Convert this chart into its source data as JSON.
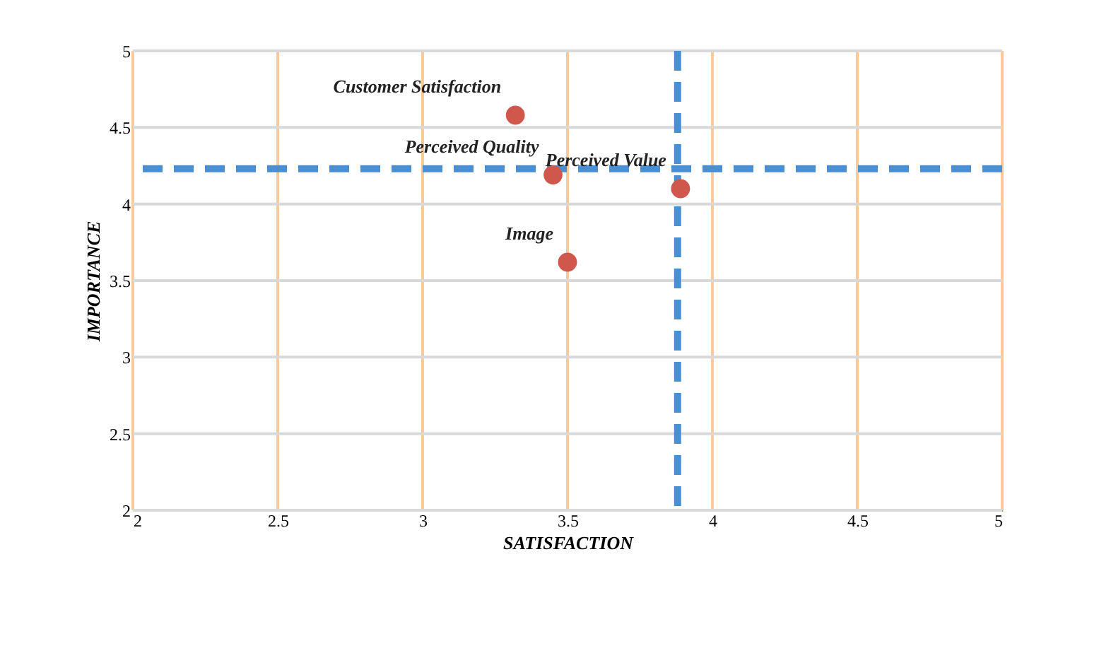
{
  "chart_data": {
    "type": "scatter",
    "xlabel": "SATISFACTION",
    "ylabel": "IMPORTANCE",
    "x": [
      3.32,
      3.45,
      3.89,
      3.5
    ],
    "series": [
      {
        "color": "#d0574b",
        "values": [
          4.58,
          4.19,
          4.1,
          3.62
        ]
      }
    ],
    "annotations": [
      {
        "text": "Customer Satisfaction",
        "x": 3.32,
        "y": 4.58
      },
      {
        "text": "Perceived Quality",
        "x": 3.45,
        "y": 4.19
      },
      {
        "text": "Perceived Value",
        "x": 3.89,
        "y": 4.1
      },
      {
        "text": "Image",
        "x": 3.5,
        "y": 3.62
      }
    ],
    "ref_lines": [
      {
        "axis": "x",
        "value": 3.88,
        "color": "#4a8fd4",
        "line_style": "dashed"
      },
      {
        "axis": "y",
        "value": 4.23,
        "color": "#4a8fd4",
        "line_style": "dashed"
      }
    ],
    "xlim": [
      2,
      5
    ],
    "xticks": [
      2,
      2.5,
      3,
      3.5,
      4,
      4.5,
      5
    ],
    "ylim": [
      2,
      5
    ],
    "yticks": [
      2,
      2.5,
      3,
      3.5,
      4,
      4.5,
      5
    ],
    "grid": true,
    "marker": "circle"
  }
}
